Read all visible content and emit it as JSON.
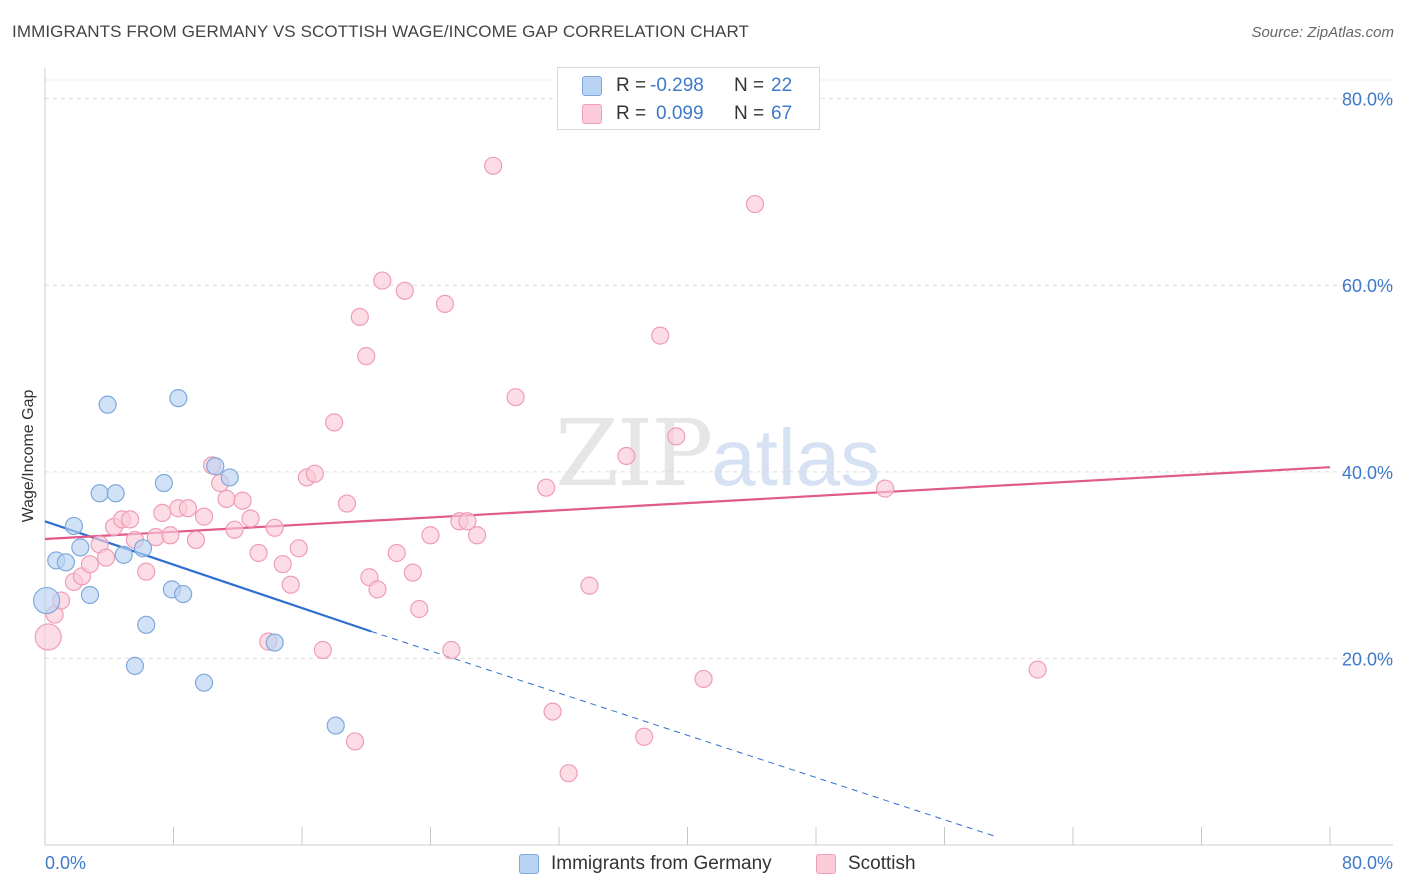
{
  "title": "IMMIGRANTS FROM GERMANY VS SCOTTISH WAGE/INCOME GAP CORRELATION CHART",
  "source": "Source: ZipAtlas.com",
  "watermark": {
    "zip": "ZIP",
    "atlas": "atlas"
  },
  "legend": {
    "rows": [
      {
        "r_label": "R =",
        "r_value": "-0.298",
        "n_label": "N =",
        "n_value": "22",
        "color": "#b9d3f3",
        "border": "#7fa8dc"
      },
      {
        "r_label": "R =",
        "r_value": "0.099",
        "n_label": "N =",
        "n_value": "67",
        "color": "#fbcbd9",
        "border": "#ef9db7"
      }
    ]
  },
  "bottom_legend": [
    {
      "label": "Immigrants from Germany",
      "color": "#b9d3f3",
      "border": "#7fa8dc"
    },
    {
      "label": "Scottish",
      "color": "#fbcbd9",
      "border": "#ef9db7"
    }
  ],
  "chart_data": {
    "type": "scatter",
    "title": "IMMIGRANTS FROM GERMANY VS SCOTTISH WAGE/INCOME GAP CORRELATION CHART",
    "xlabel": "",
    "ylabel": "Wage/Income Gap",
    "xlim": [
      0,
      80
    ],
    "ylim": [
      0,
      82
    ],
    "x_tick_labels": [
      "0.0%",
      "80.0%"
    ],
    "y_ticks": [
      20,
      40,
      60,
      80
    ],
    "y_tick_labels": [
      "20.0%",
      "40.0%",
      "60.0%",
      "80.0%"
    ],
    "grid": true,
    "legend_position": "top-center",
    "colors": {
      "germany_fill": "#b9d3f3",
      "germany_stroke": "#7fa8dc",
      "germany_line": "#2f6fd0",
      "scottish_fill": "#fbcbd9",
      "scottish_stroke": "#ef9db7",
      "scottish_line": "#e05a8a",
      "axis_text": "#3f79c9"
    },
    "series": [
      {
        "name": "Immigrants from Germany",
        "points": [
          [
            0.1,
            26.2
          ],
          [
            0.7,
            30.5
          ],
          [
            1.3,
            30.3
          ],
          [
            1.8,
            34.2
          ],
          [
            2.2,
            31.9
          ],
          [
            2.8,
            26.8
          ],
          [
            3.4,
            37.7
          ],
          [
            4.4,
            37.7
          ],
          [
            3.9,
            47.2
          ],
          [
            4.9,
            31.1
          ],
          [
            5.6,
            19.2
          ],
          [
            6.1,
            31.8
          ],
          [
            6.3,
            23.6
          ],
          [
            7.4,
            38.8
          ],
          [
            7.9,
            27.4
          ],
          [
            8.3,
            47.9
          ],
          [
            8.6,
            26.9
          ],
          [
            9.9,
            17.4
          ],
          [
            10.6,
            40.6
          ],
          [
            11.5,
            39.4
          ],
          [
            14.3,
            21.7
          ],
          [
            18.1,
            12.8
          ]
        ]
      },
      {
        "name": "Scottish",
        "points": [
          [
            0.2,
            22.3
          ],
          [
            0.6,
            24.7
          ],
          [
            1.0,
            26.2
          ],
          [
            1.8,
            28.2
          ],
          [
            2.3,
            28.8
          ],
          [
            2.8,
            30.1
          ],
          [
            3.4,
            32.2
          ],
          [
            3.8,
            30.8
          ],
          [
            4.3,
            34.1
          ],
          [
            4.8,
            34.9
          ],
          [
            5.3,
            34.9
          ],
          [
            5.6,
            32.7
          ],
          [
            6.3,
            29.3
          ],
          [
            6.9,
            33.0
          ],
          [
            7.3,
            35.6
          ],
          [
            7.8,
            33.2
          ],
          [
            8.3,
            36.1
          ],
          [
            8.9,
            36.1
          ],
          [
            9.4,
            32.7
          ],
          [
            9.9,
            35.2
          ],
          [
            10.4,
            40.7
          ],
          [
            10.9,
            38.8
          ],
          [
            11.3,
            37.1
          ],
          [
            11.8,
            33.8
          ],
          [
            12.3,
            36.9
          ],
          [
            12.8,
            35.0
          ],
          [
            13.3,
            31.3
          ],
          [
            13.9,
            21.8
          ],
          [
            14.3,
            34.0
          ],
          [
            14.8,
            30.1
          ],
          [
            15.3,
            27.9
          ],
          [
            15.8,
            31.8
          ],
          [
            16.3,
            39.4
          ],
          [
            16.8,
            39.8
          ],
          [
            17.3,
            20.9
          ],
          [
            18.0,
            45.3
          ],
          [
            18.8,
            36.6
          ],
          [
            19.3,
            11.1
          ],
          [
            19.6,
            56.6
          ],
          [
            20.2,
            28.7
          ],
          [
            20.7,
            27.4
          ],
          [
            21.0,
            60.5
          ],
          [
            21.9,
            31.3
          ],
          [
            22.4,
            59.4
          ],
          [
            22.9,
            29.2
          ],
          [
            23.3,
            25.3
          ],
          [
            24.0,
            33.2
          ],
          [
            24.9,
            58.0
          ],
          [
            25.3,
            20.9
          ],
          [
            25.8,
            34.7
          ],
          [
            26.3,
            34.7
          ],
          [
            26.9,
            33.2
          ],
          [
            27.9,
            72.8
          ],
          [
            29.3,
            48.0
          ],
          [
            31.2,
            38.3
          ],
          [
            31.6,
            14.3
          ],
          [
            32.6,
            7.7
          ],
          [
            33.9,
            27.8
          ],
          [
            36.2,
            41.7
          ],
          [
            37.3,
            11.6
          ],
          [
            38.3,
            54.6
          ],
          [
            39.3,
            43.8
          ],
          [
            41.0,
            17.8
          ],
          [
            44.2,
            68.7
          ],
          [
            52.3,
            38.2
          ],
          [
            61.8,
            18.8
          ],
          [
            20.0,
            52.4
          ]
        ]
      }
    ],
    "trendlines": [
      {
        "series": "Immigrants from Germany",
        "x_start": 0,
        "y_start": 34.7,
        "x_solid_end": 20.3,
        "y_solid_end": 22.9,
        "x_end": 59.2,
        "y_end": 0.9,
        "dashed_extension": true
      },
      {
        "series": "Scottish",
        "x_start": 0,
        "y_start": 32.8,
        "x_end": 80,
        "y_end": 40.5
      }
    ]
  }
}
